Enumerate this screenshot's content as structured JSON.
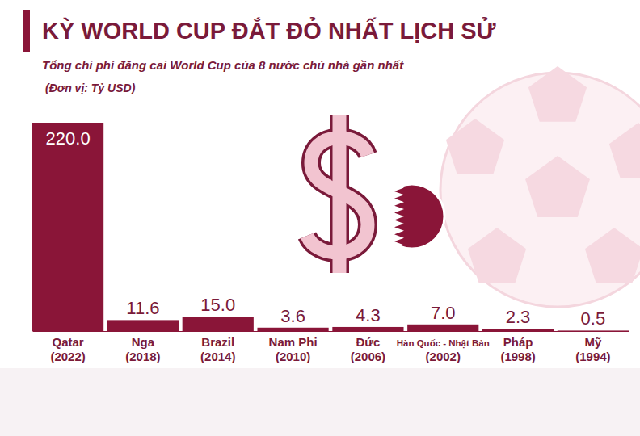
{
  "chart_data": {
    "type": "bar",
    "title": "KỲ WORLD CUP ĐẮT ĐỎ NHẤT LỊCH SỬ",
    "subtitle": "Tổng chi phí đăng cai World Cup của 8 nước chủ nhà gần nhất",
    "y_label": "(Đơn vị: Tỷ USD)",
    "categories": [
      "Qatar (2022)",
      "Nga (2018)",
      "Brazil (2014)",
      "Nam Phi (2010)",
      "Đức (2006)",
      "Hàn Quốc - Nhật Bản (2002)",
      "Pháp (1998)",
      "Mỹ (1994)"
    ],
    "values": [
      220,
      11.6,
      15,
      3.6,
      4.3,
      7,
      2.3,
      0.5
    ],
    "value_labels": [
      "220.0",
      "11.6",
      "15.0",
      "3.6",
      "4.3",
      "7.0",
      "2.3",
      "0.5"
    ],
    "color": "#8a1538",
    "ylim": [
      0,
      220
    ],
    "data_labels": true,
    "grid": false,
    "tick_labels": "x"
  }
}
